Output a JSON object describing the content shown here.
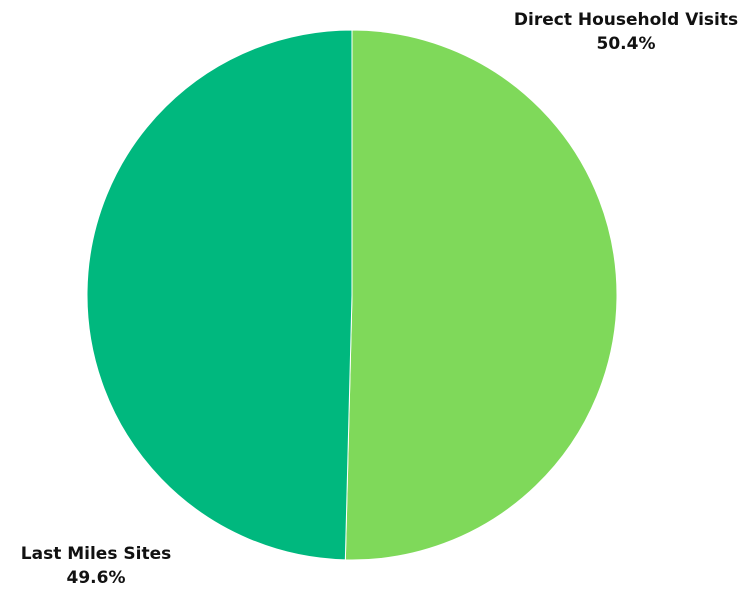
{
  "chart_data": {
    "type": "pie",
    "slices": [
      {
        "label": "Direct Household Visits",
        "value": 50.4,
        "value_label": "50.4%",
        "color": "#7fd95a"
      },
      {
        "label": "Last Miles Sites",
        "value": 49.6,
        "value_label": "49.6%",
        "color": "#00b87e"
      }
    ],
    "start": "top",
    "direction": "clockwise",
    "legend": "none"
  }
}
